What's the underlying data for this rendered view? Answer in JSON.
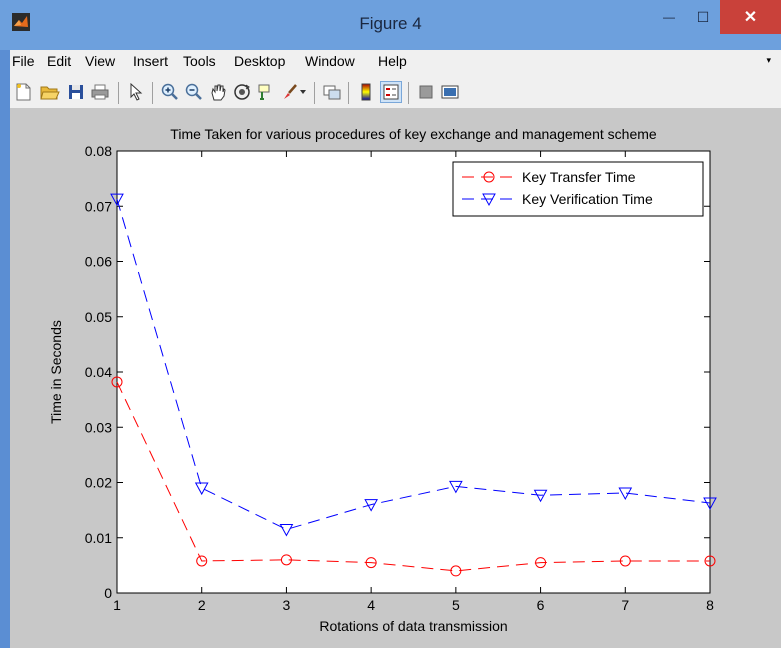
{
  "window": {
    "title": "Figure 4",
    "close_glyph": "✕",
    "minimize_glyph": "—",
    "maximize_glyph": "☐"
  },
  "menu": [
    {
      "label": "File"
    },
    {
      "label": "Edit"
    },
    {
      "label": "View"
    },
    {
      "label": "Insert"
    },
    {
      "label": "Tools"
    },
    {
      "label": "Desktop"
    },
    {
      "label": "Window"
    },
    {
      "label": "Help"
    }
  ],
  "toolbar_icons": [
    "new-figure-icon",
    "open-file-icon",
    "save-icon",
    "print-icon",
    "pointer-icon",
    "zoom-in-icon",
    "zoom-out-icon",
    "pan-icon",
    "rotate-3d-icon",
    "data-cursor-icon",
    "brush-icon",
    "link-plot-icon",
    "colorbar-icon",
    "legend-icon",
    "hide-plot-tools-icon",
    "show-plot-tools-icon"
  ],
  "chart_data": {
    "type": "line",
    "title": "Time Taken for various procedures of key exchange and management scheme",
    "xlabel": "Rotations of data transmission",
    "ylabel": "Time in Seconds",
    "xlim": [
      1,
      8
    ],
    "ylim": [
      0,
      0.08
    ],
    "x": [
      1,
      2,
      3,
      4,
      5,
      6,
      7,
      8
    ],
    "xticks": [
      "1",
      "2",
      "3",
      "4",
      "5",
      "6",
      "7",
      "8"
    ],
    "yticks": [
      "0",
      "0.01",
      "0.02",
      "0.03",
      "0.04",
      "0.05",
      "0.06",
      "0.07",
      "0.08"
    ],
    "ytick_values": [
      0,
      0.01,
      0.02,
      0.03,
      0.04,
      0.05,
      0.06,
      0.07,
      0.08
    ],
    "legend_position": "top-right",
    "grid": false,
    "series": [
      {
        "name": "Key Transfer Time",
        "color": "#ff0000",
        "marker": "circle",
        "linestyle": "dashed",
        "values": [
          0.0382,
          0.0058,
          0.006,
          0.0055,
          0.004,
          0.0055,
          0.0058,
          0.0058
        ]
      },
      {
        "name": "Key Verification Time",
        "color": "#0000ff",
        "marker": "triangle-down",
        "linestyle": "dashed",
        "values": [
          0.0713,
          0.019,
          0.0115,
          0.016,
          0.0193,
          0.0177,
          0.0181,
          0.0163
        ]
      }
    ]
  }
}
